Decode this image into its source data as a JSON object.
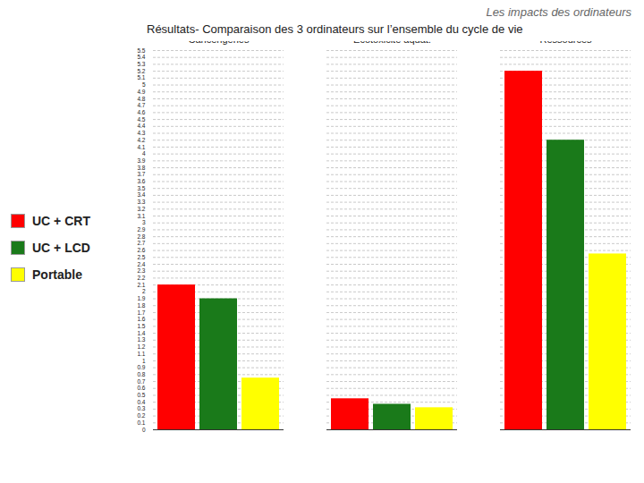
{
  "chart_data": {
    "type": "bar",
    "title": "Les impacts des ordinateurs",
    "subtitle": "Résultats- Comparaison des 3 ordinateurs sur l’ensemble du cycle de vie",
    "categories": [
      "Cancérigènes",
      "Écotoxicité aquat.",
      "Ressources"
    ],
    "series": [
      {
        "name": "UC + CRT",
        "color": "#FF0000",
        "values": [
          2.1,
          0.45,
          5.2
        ]
      },
      {
        "name": "UC + LCD",
        "color": "#1a7a1a",
        "values": [
          1.9,
          0.37,
          4.2
        ]
      },
      {
        "name": "Portable",
        "color": "#FFFF00",
        "values": [
          0.75,
          0.32,
          2.55
        ]
      }
    ],
    "ylim": [
      0,
      5.5
    ],
    "yticks": [
      0,
      0.1,
      0.2,
      0.3,
      0.4,
      0.5,
      0.6,
      0.7,
      0.8,
      0.9,
      1,
      1.1,
      1.2,
      1.3,
      1.4,
      1.5,
      1.6,
      1.7,
      1.8,
      1.9,
      2,
      2.1,
      2.2,
      2.3,
      2.4,
      2.5,
      2.6,
      2.7,
      2.8,
      2.9,
      3,
      3.1,
      3.2,
      3.3,
      3.4,
      3.5,
      3.6,
      3.7,
      3.8,
      3.9,
      4,
      4.1,
      4.2,
      4.3,
      4.4,
      4.5,
      4.6,
      4.7,
      4.8,
      4.9,
      5,
      5.1,
      5.2,
      5.3,
      5.4,
      5.5
    ],
    "grid": true,
    "legend": "left"
  }
}
